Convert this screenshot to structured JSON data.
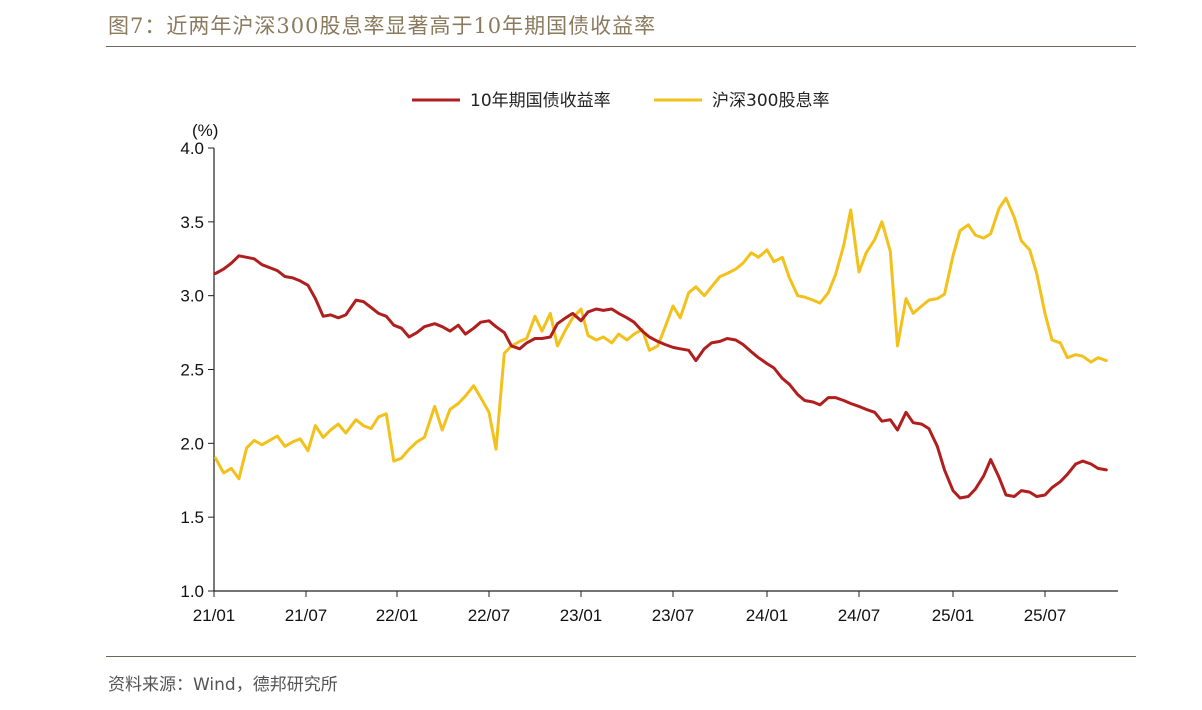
{
  "header": {
    "title": "图7：近两年沪深300股息率显著高于10年期国债收益率"
  },
  "footer": {
    "source": "资料来源：Wind，德邦研究所"
  },
  "colors": {
    "bond": "#b01e1e",
    "dividend": "#f2c11c",
    "axis": "#222222",
    "rule": "#6e6658"
  },
  "chart_data": {
    "type": "line",
    "ylabel": "(%)",
    "ylim": [
      1.0,
      4.0
    ],
    "y_ticks": [
      "1.0",
      "1.5",
      "2.0",
      "2.5",
      "3.0",
      "3.5",
      "4.0"
    ],
    "x_ticks": [
      "21/01",
      "21/07",
      "22/01",
      "22/07",
      "23/01",
      "23/07",
      "24/01",
      "24/07",
      "25/01",
      "25/07"
    ],
    "x_range": [
      "2021-01",
      "2025-11"
    ],
    "legend": "top-center",
    "grid": false,
    "series": [
      {
        "name": "10年期国债收益率",
        "color_key": "bond",
        "points": [
          [
            "2021-01-04",
            3.15
          ],
          [
            "2021-01-20",
            3.18
          ],
          [
            "2021-02-05",
            3.22
          ],
          [
            "2021-02-20",
            3.27
          ],
          [
            "2021-03-05",
            3.26
          ],
          [
            "2021-03-20",
            3.25
          ],
          [
            "2021-04-05",
            3.21
          ],
          [
            "2021-04-20",
            3.19
          ],
          [
            "2021-05-05",
            3.17
          ],
          [
            "2021-05-20",
            3.13
          ],
          [
            "2021-06-05",
            3.12
          ],
          [
            "2021-06-20",
            3.1
          ],
          [
            "2021-07-05",
            3.07
          ],
          [
            "2021-07-20",
            2.98
          ],
          [
            "2021-08-05",
            2.86
          ],
          [
            "2021-08-20",
            2.87
          ],
          [
            "2021-09-05",
            2.85
          ],
          [
            "2021-09-20",
            2.87
          ],
          [
            "2021-10-10",
            2.97
          ],
          [
            "2021-10-25",
            2.96
          ],
          [
            "2021-11-10",
            2.92
          ],
          [
            "2021-11-25",
            2.88
          ],
          [
            "2021-12-10",
            2.86
          ],
          [
            "2021-12-25",
            2.8
          ],
          [
            "2022-01-10",
            2.78
          ],
          [
            "2022-01-25",
            2.72
          ],
          [
            "2022-02-10",
            2.75
          ],
          [
            "2022-02-25",
            2.79
          ],
          [
            "2022-03-15",
            2.81
          ],
          [
            "2022-03-30",
            2.79
          ],
          [
            "2022-04-15",
            2.76
          ],
          [
            "2022-05-01",
            2.8
          ],
          [
            "2022-05-15",
            2.74
          ],
          [
            "2022-06-01",
            2.78
          ],
          [
            "2022-06-15",
            2.82
          ],
          [
            "2022-07-01",
            2.83
          ],
          [
            "2022-07-15",
            2.79
          ],
          [
            "2022-08-01",
            2.75
          ],
          [
            "2022-08-15",
            2.66
          ],
          [
            "2022-09-01",
            2.64
          ],
          [
            "2022-09-15",
            2.68
          ],
          [
            "2022-10-01",
            2.71
          ],
          [
            "2022-10-15",
            2.71
          ],
          [
            "2022-11-01",
            2.72
          ],
          [
            "2022-11-15",
            2.81
          ],
          [
            "2022-12-01",
            2.85
          ],
          [
            "2022-12-15",
            2.88
          ],
          [
            "2023-01-01",
            2.83
          ],
          [
            "2023-01-15",
            2.89
          ],
          [
            "2023-02-01",
            2.91
          ],
          [
            "2023-02-15",
            2.9
          ],
          [
            "2023-03-01",
            2.91
          ],
          [
            "2023-03-15",
            2.88
          ],
          [
            "2023-04-01",
            2.85
          ],
          [
            "2023-04-15",
            2.82
          ],
          [
            "2023-05-01",
            2.76
          ],
          [
            "2023-05-15",
            2.72
          ],
          [
            "2023-06-01",
            2.69
          ],
          [
            "2023-06-15",
            2.67
          ],
          [
            "2023-07-01",
            2.65
          ],
          [
            "2023-07-15",
            2.64
          ],
          [
            "2023-08-01",
            2.63
          ],
          [
            "2023-08-15",
            2.56
          ],
          [
            "2023-09-01",
            2.64
          ],
          [
            "2023-09-15",
            2.68
          ],
          [
            "2023-10-01",
            2.69
          ],
          [
            "2023-10-15",
            2.71
          ],
          [
            "2023-11-01",
            2.7
          ],
          [
            "2023-11-15",
            2.67
          ],
          [
            "2023-12-01",
            2.62
          ],
          [
            "2023-12-15",
            2.58
          ],
          [
            "2024-01-01",
            2.54
          ],
          [
            "2024-01-15",
            2.51
          ],
          [
            "2024-02-01",
            2.44
          ],
          [
            "2024-02-15",
            2.4
          ],
          [
            "2024-03-01",
            2.33
          ],
          [
            "2024-03-15",
            2.29
          ],
          [
            "2024-04-01",
            2.28
          ],
          [
            "2024-04-15",
            2.26
          ],
          [
            "2024-05-01",
            2.31
          ],
          [
            "2024-05-15",
            2.31
          ],
          [
            "2024-06-01",
            2.29
          ],
          [
            "2024-06-15",
            2.27
          ],
          [
            "2024-07-01",
            2.25
          ],
          [
            "2024-07-15",
            2.23
          ],
          [
            "2024-08-01",
            2.21
          ],
          [
            "2024-08-15",
            2.15
          ],
          [
            "2024-09-01",
            2.16
          ],
          [
            "2024-09-15",
            2.09
          ],
          [
            "2024-10-01",
            2.21
          ],
          [
            "2024-10-15",
            2.14
          ],
          [
            "2024-11-01",
            2.13
          ],
          [
            "2024-11-15",
            2.1
          ],
          [
            "2024-12-01",
            1.98
          ],
          [
            "2024-12-15",
            1.82
          ],
          [
            "2025-01-01",
            1.68
          ],
          [
            "2025-01-15",
            1.63
          ],
          [
            "2025-02-01",
            1.64
          ],
          [
            "2025-02-15",
            1.69
          ],
          [
            "2025-03-01",
            1.78
          ],
          [
            "2025-03-15",
            1.89
          ],
          [
            "2025-04-01",
            1.77
          ],
          [
            "2025-04-15",
            1.65
          ],
          [
            "2025-05-01",
            1.64
          ],
          [
            "2025-05-15",
            1.68
          ],
          [
            "2025-06-01",
            1.67
          ],
          [
            "2025-06-15",
            1.64
          ],
          [
            "2025-07-01",
            1.65
          ],
          [
            "2025-07-15",
            1.7
          ],
          [
            "2025-08-01",
            1.74
          ],
          [
            "2025-08-15",
            1.79
          ],
          [
            "2025-09-01",
            1.86
          ],
          [
            "2025-09-15",
            1.88
          ],
          [
            "2025-10-01",
            1.86
          ],
          [
            "2025-10-15",
            1.83
          ],
          [
            "2025-11-01",
            1.82
          ]
        ]
      },
      {
        "name": "沪深300股息率",
        "color_key": "dividend",
        "points": [
          [
            "2021-01-04",
            1.9
          ],
          [
            "2021-01-20",
            1.8
          ],
          [
            "2021-02-05",
            1.83
          ],
          [
            "2021-02-20",
            1.76
          ],
          [
            "2021-03-05",
            1.97
          ],
          [
            "2021-03-20",
            2.02
          ],
          [
            "2021-04-05",
            1.99
          ],
          [
            "2021-04-20",
            2.02
          ],
          [
            "2021-05-05",
            2.05
          ],
          [
            "2021-05-20",
            1.98
          ],
          [
            "2021-06-05",
            2.01
          ],
          [
            "2021-06-20",
            2.03
          ],
          [
            "2021-07-05",
            1.95
          ],
          [
            "2021-07-20",
            2.12
          ],
          [
            "2021-08-05",
            2.04
          ],
          [
            "2021-08-20",
            2.09
          ],
          [
            "2021-09-05",
            2.13
          ],
          [
            "2021-09-20",
            2.07
          ],
          [
            "2021-10-10",
            2.16
          ],
          [
            "2021-10-25",
            2.12
          ],
          [
            "2021-11-10",
            2.1
          ],
          [
            "2021-11-25",
            2.18
          ],
          [
            "2021-12-10",
            2.2
          ],
          [
            "2021-12-25",
            1.88
          ],
          [
            "2022-01-10",
            1.9
          ],
          [
            "2022-01-25",
            1.96
          ],
          [
            "2022-02-10",
            2.01
          ],
          [
            "2022-02-25",
            2.04
          ],
          [
            "2022-03-15",
            2.25
          ],
          [
            "2022-03-30",
            2.09
          ],
          [
            "2022-04-15",
            2.23
          ],
          [
            "2022-05-01",
            2.27
          ],
          [
            "2022-05-15",
            2.32
          ],
          [
            "2022-06-01",
            2.39
          ],
          [
            "2022-06-15",
            2.31
          ],
          [
            "2022-07-01",
            2.21
          ],
          [
            "2022-07-15",
            1.96
          ],
          [
            "2022-08-01",
            2.61
          ],
          [
            "2022-08-15",
            2.66
          ],
          [
            "2022-09-01",
            2.69
          ],
          [
            "2022-09-15",
            2.71
          ],
          [
            "2022-10-01",
            2.86
          ],
          [
            "2022-10-15",
            2.76
          ],
          [
            "2022-11-01",
            2.88
          ],
          [
            "2022-11-15",
            2.66
          ],
          [
            "2022-12-01",
            2.77
          ],
          [
            "2022-12-15",
            2.85
          ],
          [
            "2023-01-01",
            2.91
          ],
          [
            "2023-01-15",
            2.73
          ],
          [
            "2023-02-01",
            2.7
          ],
          [
            "2023-02-15",
            2.72
          ],
          [
            "2023-03-01",
            2.68
          ],
          [
            "2023-03-15",
            2.74
          ],
          [
            "2023-04-01",
            2.7
          ],
          [
            "2023-04-15",
            2.74
          ],
          [
            "2023-05-01",
            2.77
          ],
          [
            "2023-05-15",
            2.63
          ],
          [
            "2023-06-01",
            2.66
          ],
          [
            "2023-06-15",
            2.78
          ],
          [
            "2023-07-01",
            2.93
          ],
          [
            "2023-07-15",
            2.85
          ],
          [
            "2023-08-01",
            3.02
          ],
          [
            "2023-08-15",
            3.06
          ],
          [
            "2023-09-01",
            3.0
          ],
          [
            "2023-09-15",
            3.06
          ],
          [
            "2023-10-01",
            3.13
          ],
          [
            "2023-10-15",
            3.15
          ],
          [
            "2023-11-01",
            3.18
          ],
          [
            "2023-11-15",
            3.22
          ],
          [
            "2023-12-01",
            3.29
          ],
          [
            "2023-12-15",
            3.26
          ],
          [
            "2024-01-01",
            3.31
          ],
          [
            "2024-01-15",
            3.23
          ],
          [
            "2024-02-01",
            3.26
          ],
          [
            "2024-02-15",
            3.12
          ],
          [
            "2024-03-01",
            3.0
          ],
          [
            "2024-03-15",
            2.99
          ],
          [
            "2024-04-01",
            2.97
          ],
          [
            "2024-04-15",
            2.95
          ],
          [
            "2024-05-01",
            3.02
          ],
          [
            "2024-05-15",
            3.14
          ],
          [
            "2024-06-01",
            3.34
          ],
          [
            "2024-06-15",
            3.58
          ],
          [
            "2024-07-01",
            3.16
          ],
          [
            "2024-07-15",
            3.29
          ],
          [
            "2024-08-01",
            3.38
          ],
          [
            "2024-08-15",
            3.5
          ],
          [
            "2024-09-01",
            3.3
          ],
          [
            "2024-09-15",
            2.66
          ],
          [
            "2024-10-01",
            2.98
          ],
          [
            "2024-10-15",
            2.88
          ],
          [
            "2024-11-01",
            2.93
          ],
          [
            "2024-11-15",
            2.97
          ],
          [
            "2024-12-01",
            2.98
          ],
          [
            "2024-12-15",
            3.01
          ],
          [
            "2025-01-01",
            3.27
          ],
          [
            "2025-01-15",
            3.44
          ],
          [
            "2025-02-01",
            3.48
          ],
          [
            "2025-02-15",
            3.41
          ],
          [
            "2025-03-01",
            3.39
          ],
          [
            "2025-03-15",
            3.42
          ],
          [
            "2025-04-01",
            3.59
          ],
          [
            "2025-04-15",
            3.66
          ],
          [
            "2025-05-01",
            3.53
          ],
          [
            "2025-05-15",
            3.37
          ],
          [
            "2025-06-01",
            3.31
          ],
          [
            "2025-06-15",
            3.15
          ],
          [
            "2025-07-01",
            2.88
          ],
          [
            "2025-07-15",
            2.7
          ],
          [
            "2025-08-01",
            2.68
          ],
          [
            "2025-08-15",
            2.58
          ],
          [
            "2025-09-01",
            2.6
          ],
          [
            "2025-09-15",
            2.59
          ],
          [
            "2025-10-01",
            2.55
          ],
          [
            "2025-10-15",
            2.58
          ],
          [
            "2025-11-01",
            2.56
          ]
        ]
      }
    ]
  }
}
